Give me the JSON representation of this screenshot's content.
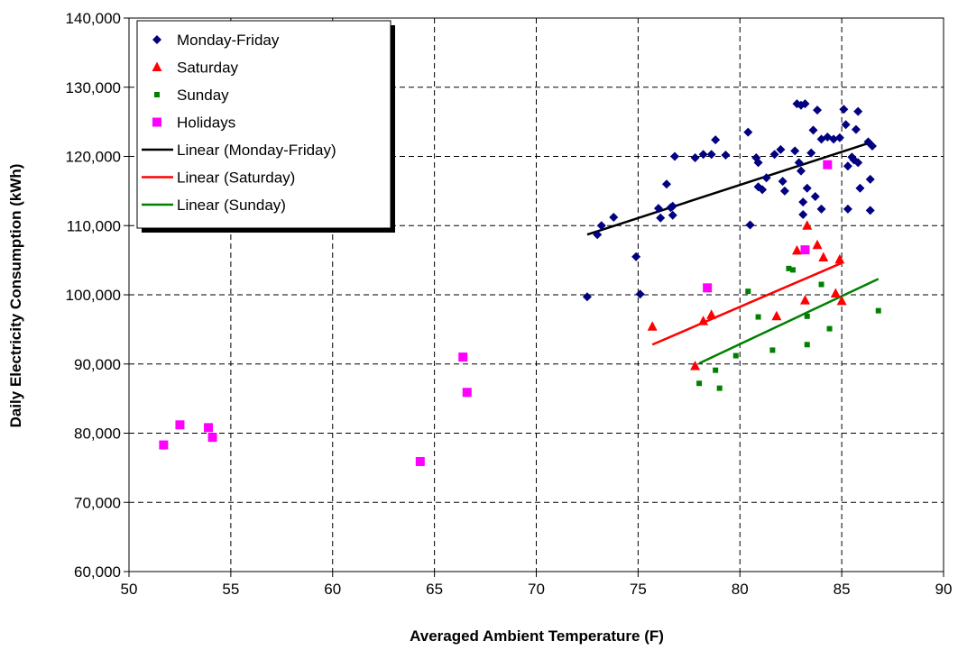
{
  "chart_data": {
    "type": "scatter",
    "xlabel": "Averaged Ambient Temperature (F)",
    "ylabel": "Daily Electricity Consumption (kWh)",
    "xlim": [
      50,
      90
    ],
    "ylim": [
      60000,
      140000
    ],
    "x_ticks": [
      "50",
      "55",
      "60",
      "65",
      "70",
      "75",
      "80",
      "85",
      "90"
    ],
    "y_ticks": [
      "60,000",
      "70,000",
      "80,000",
      "90,000",
      "100,000",
      "110,000",
      "120,000",
      "130,000",
      "140,000"
    ],
    "grid": true,
    "legend_position": "top-left",
    "series": [
      {
        "name": "Monday-Friday",
        "marker": "diamond",
        "color": "#000080",
        "points": [
          [
            72.5,
            99700
          ],
          [
            73.0,
            108700
          ],
          [
            73.2,
            110000
          ],
          [
            73.8,
            111200
          ],
          [
            74.9,
            105500
          ],
          [
            75.1,
            100100
          ],
          [
            76.0,
            112500
          ],
          [
            76.1,
            111100
          ],
          [
            76.4,
            116000
          ],
          [
            76.6,
            112600
          ],
          [
            76.7,
            111500
          ],
          [
            76.7,
            112800
          ],
          [
            76.8,
            120000
          ],
          [
            77.8,
            119800
          ],
          [
            78.2,
            120300
          ],
          [
            78.6,
            120300
          ],
          [
            78.8,
            122400
          ],
          [
            79.3,
            120200
          ],
          [
            80.4,
            123500
          ],
          [
            80.5,
            110100
          ],
          [
            80.8,
            119800
          ],
          [
            80.9,
            119100
          ],
          [
            80.9,
            115600
          ],
          [
            81.1,
            115200
          ],
          [
            81.3,
            116900
          ],
          [
            81.7,
            120300
          ],
          [
            82.0,
            121000
          ],
          [
            82.1,
            116400
          ],
          [
            82.2,
            115000
          ],
          [
            82.7,
            120800
          ],
          [
            82.8,
            127600
          ],
          [
            83.0,
            127400
          ],
          [
            82.9,
            119100
          ],
          [
            83.0,
            117900
          ],
          [
            83.1,
            111600
          ],
          [
            83.1,
            113400
          ],
          [
            83.2,
            127600
          ],
          [
            83.3,
            115400
          ],
          [
            83.5,
            120500
          ],
          [
            83.6,
            123800
          ],
          [
            83.7,
            114200
          ],
          [
            83.8,
            126700
          ],
          [
            84.0,
            122500
          ],
          [
            84.0,
            112400
          ],
          [
            84.3,
            122800
          ],
          [
            84.6,
            122500
          ],
          [
            84.9,
            122700
          ],
          [
            85.1,
            126800
          ],
          [
            85.2,
            124600
          ],
          [
            85.3,
            118600
          ],
          [
            85.3,
            112400
          ],
          [
            85.5,
            119900
          ],
          [
            85.6,
            119500
          ],
          [
            85.7,
            123900
          ],
          [
            85.8,
            126500
          ],
          [
            85.8,
            119100
          ],
          [
            85.9,
            115400
          ],
          [
            86.3,
            122100
          ],
          [
            86.5,
            121500
          ],
          [
            86.4,
            116700
          ],
          [
            86.4,
            112200
          ]
        ]
      },
      {
        "name": "Saturday",
        "marker": "triangle",
        "color": "#ff0000",
        "points": [
          [
            75.7,
            95400
          ],
          [
            77.8,
            89700
          ],
          [
            78.2,
            96200
          ],
          [
            78.6,
            97100
          ],
          [
            81.8,
            96900
          ],
          [
            82.8,
            106400
          ],
          [
            83.2,
            99200
          ],
          [
            83.3,
            110000
          ],
          [
            83.8,
            107200
          ],
          [
            84.1,
            105400
          ],
          [
            84.7,
            100200
          ],
          [
            84.9,
            105100
          ],
          [
            85.0,
            99100
          ]
        ]
      },
      {
        "name": "Sunday",
        "marker": "square-small",
        "color": "#008000",
        "points": [
          [
            78.0,
            87200
          ],
          [
            78.8,
            89100
          ],
          [
            79.0,
            86500
          ],
          [
            79.8,
            91200
          ],
          [
            80.4,
            100500
          ],
          [
            80.9,
            96800
          ],
          [
            81.6,
            92000
          ],
          [
            82.4,
            103800
          ],
          [
            82.6,
            103600
          ],
          [
            83.3,
            92800
          ],
          [
            83.3,
            96900
          ],
          [
            84.0,
            101500
          ],
          [
            84.4,
            95100
          ],
          [
            86.8,
            97700
          ]
        ]
      },
      {
        "name": "Holidays",
        "marker": "square",
        "color": "#ff00ff",
        "points": [
          [
            51.7,
            78300
          ],
          [
            52.5,
            81200
          ],
          [
            53.9,
            80800
          ],
          [
            54.1,
            79400
          ],
          [
            64.3,
            75900
          ],
          [
            66.4,
            91000
          ],
          [
            66.6,
            85900
          ],
          [
            78.4,
            101000
          ],
          [
            83.2,
            106500
          ],
          [
            84.3,
            118800
          ]
        ]
      },
      {
        "name": "Linear (Monday-Friday)",
        "kind": "trendline",
        "color": "#000000",
        "points": [
          [
            72.5,
            108700
          ],
          [
            86.5,
            122100
          ]
        ]
      },
      {
        "name": "Linear (Saturday)",
        "kind": "trendline",
        "color": "#ff0000",
        "points": [
          [
            75.7,
            92800
          ],
          [
            85.0,
            104600
          ]
        ]
      },
      {
        "name": "Linear (Sunday)",
        "kind": "trendline",
        "color": "#008000",
        "points": [
          [
            78.0,
            90100
          ],
          [
            86.8,
            102300
          ]
        ]
      }
    ]
  }
}
